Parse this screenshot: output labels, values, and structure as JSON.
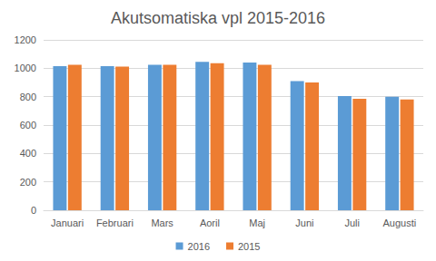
{
  "chart_data": {
    "type": "bar",
    "title": "Akutsomatiska vpl 2015-2016",
    "categories": [
      "Januari",
      "Februari",
      "Mars",
      "Aoril",
      "Maj",
      "Juni",
      "Juli",
      "Augusti"
    ],
    "series": [
      {
        "name": "2016",
        "color": "#5b9bd5",
        "values": [
          1015,
          1015,
          1025,
          1045,
          1040,
          910,
          805,
          800
        ]
      },
      {
        "name": "2015",
        "color": "#ed7d31",
        "values": [
          1025,
          1012,
          1025,
          1035,
          1025,
          900,
          785,
          780
        ]
      }
    ],
    "ylim": [
      0,
      1200
    ],
    "yticks": [
      0,
      200,
      400,
      600,
      800,
      1000,
      1200
    ],
    "grid": true,
    "legend": "bottom"
  }
}
